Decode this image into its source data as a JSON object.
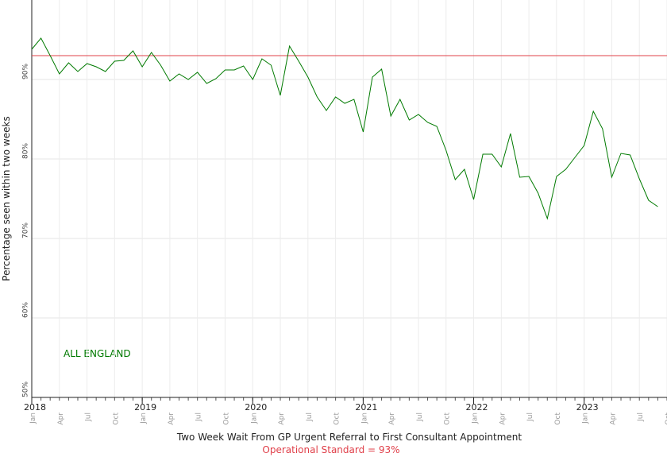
{
  "chart_data": {
    "type": "line",
    "xlabel": "Two Week Wait From GP Urgent Referral to First Consultant Appointment",
    "ylabel": "Percentage seen within two weeks",
    "annotation": "ALL ENGLAND",
    "reference_line": {
      "value": 93,
      "color": "#e0404a",
      "label": "Operational Standard = 93%"
    },
    "x": [
      "2018-01",
      "2018-02",
      "2018-03",
      "2018-04",
      "2018-05",
      "2018-06",
      "2018-07",
      "2018-08",
      "2018-09",
      "2018-10",
      "2018-11",
      "2018-12",
      "2019-01",
      "2019-02",
      "2019-03",
      "2019-04",
      "2019-05",
      "2019-06",
      "2019-07",
      "2019-08",
      "2019-09",
      "2019-10",
      "2019-11",
      "2019-12",
      "2020-01",
      "2020-02",
      "2020-03",
      "2020-04",
      "2020-05",
      "2020-06",
      "2020-07",
      "2020-08",
      "2020-09",
      "2020-10",
      "2020-11",
      "2020-12",
      "2021-01",
      "2021-02",
      "2021-03",
      "2021-04",
      "2021-05",
      "2021-06",
      "2021-07",
      "2021-08",
      "2021-09",
      "2021-10",
      "2021-11",
      "2021-12",
      "2022-01",
      "2022-02",
      "2022-03",
      "2022-04",
      "2022-05",
      "2022-06",
      "2022-07",
      "2022-08",
      "2022-09",
      "2022-10",
      "2022-11",
      "2022-12",
      "2023-01",
      "2023-02",
      "2023-03",
      "2023-04",
      "2023-05",
      "2023-06",
      "2023-07",
      "2023-08",
      "2023-09"
    ],
    "series": [
      {
        "name": "ALL ENGLAND",
        "color": "#007a00",
        "values": [
          93.8,
          95.2,
          93.0,
          90.7,
          92.1,
          91.0,
          92.0,
          91.6,
          91.0,
          92.3,
          92.4,
          93.6,
          91.6,
          93.4,
          91.8,
          89.8,
          90.7,
          90.0,
          90.9,
          89.5,
          90.1,
          91.2,
          91.2,
          91.7,
          90.0,
          92.6,
          91.8,
          88.0,
          94.2,
          92.3,
          90.3,
          87.8,
          86.1,
          87.8,
          87.0,
          87.5,
          83.4,
          90.3,
          91.3,
          85.4,
          87.5,
          84.9,
          85.6,
          84.6,
          84.1,
          81.1,
          77.4,
          78.7,
          74.9,
          80.6,
          80.6,
          79.0,
          83.2,
          77.7,
          77.8,
          75.7,
          72.5,
          77.8,
          78.7,
          80.2,
          81.7,
          86.0,
          83.8,
          77.7,
          80.7,
          80.5,
          77.5,
          74.8,
          74.0
        ]
      }
    ],
    "xlim": [
      "2018-01",
      "2023-10"
    ],
    "xticks": [
      {
        "value": "2018-01",
        "label": "Jan"
      },
      {
        "value": "2018-04",
        "label": "Apr"
      },
      {
        "value": "2018-07",
        "label": "Jul"
      },
      {
        "value": "2018-10",
        "label": "Oct"
      },
      {
        "value": "2019-01",
        "label": "Jan"
      },
      {
        "value": "2019-04",
        "label": "Apr"
      },
      {
        "value": "2019-07",
        "label": "Jul"
      },
      {
        "value": "2019-10",
        "label": "Oct"
      },
      {
        "value": "2020-01",
        "label": "Jan"
      },
      {
        "value": "2020-04",
        "label": "Apr"
      },
      {
        "value": "2020-07",
        "label": "Jul"
      },
      {
        "value": "2020-10",
        "label": "Oct"
      },
      {
        "value": "2021-01",
        "label": "Jan"
      },
      {
        "value": "2021-04",
        "label": "Apr"
      },
      {
        "value": "2021-07",
        "label": "Jul"
      },
      {
        "value": "2021-10",
        "label": "Oct"
      },
      {
        "value": "2022-01",
        "label": "Jan"
      },
      {
        "value": "2022-04",
        "label": "Apr"
      },
      {
        "value": "2022-07",
        "label": "Jul"
      },
      {
        "value": "2022-10",
        "label": "Oct"
      },
      {
        "value": "2023-01",
        "label": "Jan"
      },
      {
        "value": "2023-04",
        "label": "Apr"
      },
      {
        "value": "2023-07",
        "label": "Jul"
      },
      {
        "value": "2023-10",
        "label": "Oct"
      }
    ],
    "xtick_years": [
      {
        "value": "2018-01",
        "label": "2018"
      },
      {
        "value": "2019-01",
        "label": "2019"
      },
      {
        "value": "2020-01",
        "label": "2020"
      },
      {
        "value": "2021-01",
        "label": "2021"
      },
      {
        "value": "2022-01",
        "label": "2022"
      },
      {
        "value": "2023-01",
        "label": "2023"
      }
    ],
    "ylim": [
      50,
      100
    ],
    "yticks": [
      {
        "value": 50,
        "label": "50%"
      },
      {
        "value": 60,
        "label": "60%"
      },
      {
        "value": 70,
        "label": "70%"
      },
      {
        "value": 80,
        "label": "80%"
      },
      {
        "value": 90,
        "label": "90%"
      }
    ],
    "grid": true
  }
}
